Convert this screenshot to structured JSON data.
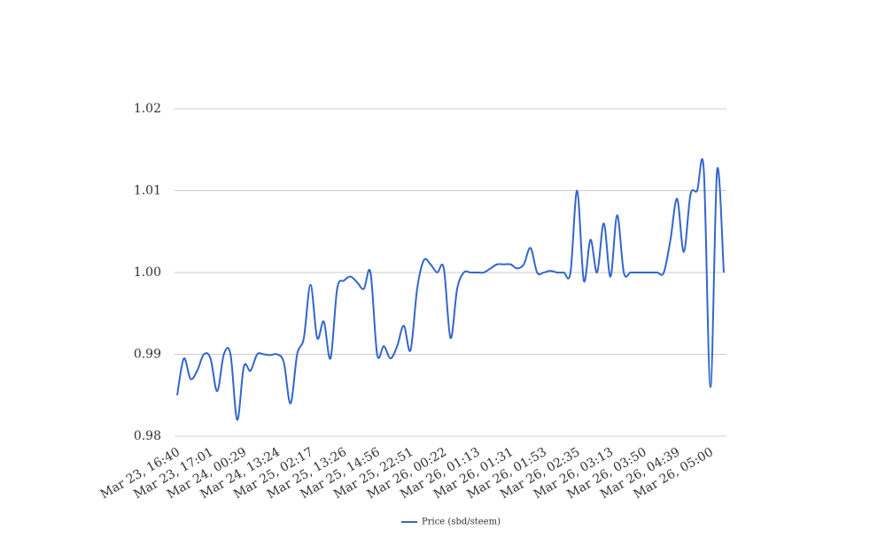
{
  "chart_data": {
    "type": "line",
    "categories": [
      "Mar 23, 16:40",
      null,
      null,
      null,
      null,
      "Mar 23, 17:01",
      null,
      null,
      null,
      null,
      "Mar 24, 00:29",
      null,
      null,
      null,
      null,
      "Mar 24, 13:24",
      null,
      null,
      null,
      null,
      "Mar 25, 02:17",
      null,
      null,
      null,
      null,
      "Mar 25, 13:26",
      null,
      null,
      null,
      null,
      "Mar 25, 14:56",
      null,
      null,
      null,
      null,
      "Mar 25, 22:51",
      null,
      null,
      null,
      null,
      "Mar 26, 00:22",
      null,
      null,
      null,
      null,
      "Mar 26, 01:13",
      null,
      null,
      null,
      null,
      "Mar 26, 01:31",
      null,
      null,
      null,
      null,
      "Mar 26, 01:53",
      null,
      null,
      null,
      null,
      "Mar 26, 02:35",
      null,
      null,
      null,
      null,
      "Mar 26, 03:13",
      null,
      null,
      null,
      null,
      "Mar 26, 03:50",
      null,
      null,
      null,
      null,
      "Mar 26, 04:39",
      null,
      null,
      null,
      null,
      "Mar 26, 05:00",
      null,
      null
    ],
    "series": [
      {
        "name": "Price (sbd/steem)",
        "color": "#3366cc",
        "values": [
          0.985,
          0.9895,
          0.987,
          0.988,
          0.99,
          0.9895,
          0.9855,
          0.99,
          0.99,
          0.982,
          0.9885,
          0.988,
          0.99,
          0.99,
          0.9899,
          0.99,
          0.989,
          0.984,
          0.99,
          0.992,
          0.9985,
          0.992,
          0.994,
          0.9895,
          0.998,
          0.999,
          0.9995,
          0.9988,
          0.998,
          1.0,
          0.99,
          0.991,
          0.9895,
          0.991,
          0.9935,
          0.9905,
          0.998,
          1.0015,
          1.001,
          1.0,
          1.0005,
          0.992,
          0.998,
          1.0,
          1.0,
          1.0,
          1.0,
          1.0005,
          1.001,
          1.001,
          1.001,
          1.0005,
          1.001,
          1.003,
          1.0,
          1.0,
          1.0002,
          1.0,
          1.0,
          1.0,
          1.01,
          0.999,
          1.004,
          1.0,
          1.006,
          0.9995,
          1.007,
          1.0,
          1.0,
          1.0,
          1.0,
          1.0,
          1.0,
          1.0,
          1.004,
          1.009,
          1.0025,
          1.0095,
          1.01,
          1.0125,
          0.986,
          1.0125,
          1.0
        ]
      }
    ],
    "ylim": [
      0.98,
      1.02
    ],
    "yticks": [
      {
        "value": 0.98,
        "label": "0.98"
      },
      {
        "value": 0.99,
        "label": "0.99"
      },
      {
        "value": 1.0,
        "label": "1.00"
      },
      {
        "value": 1.01,
        "label": "1.01"
      },
      {
        "value": 1.02,
        "label": "1.02"
      }
    ],
    "grid": true,
    "legend": "bottom"
  }
}
